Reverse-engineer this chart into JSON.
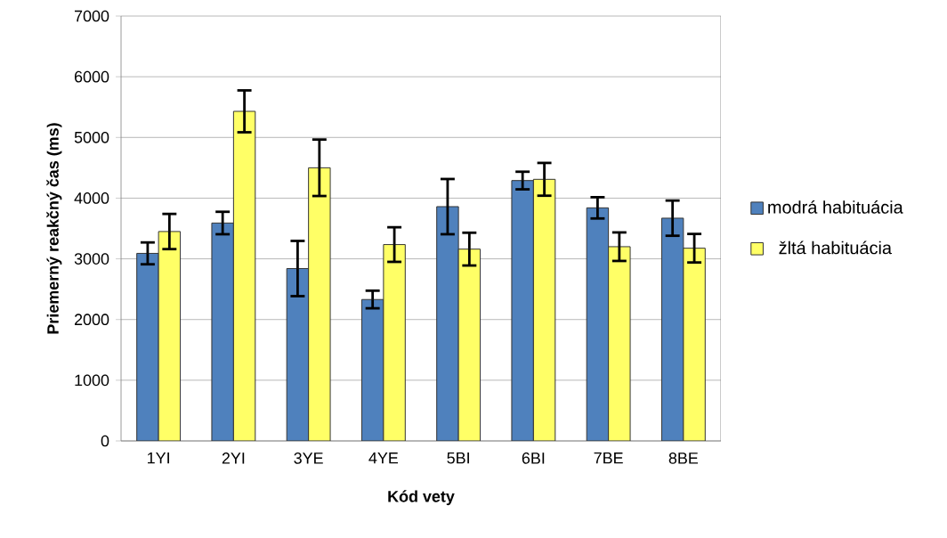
{
  "chart_data": {
    "type": "bar",
    "xlabel": "Kód vety",
    "ylabel": "Priemerný reakčný čas (ms)",
    "categories": [
      "1YI",
      "2YI",
      "3YE",
      "4YE",
      "5BI",
      "6BI",
      "7BE",
      "8BE"
    ],
    "series": [
      {
        "name": "modrá habituácia",
        "color": "#4f81bd",
        "values": [
          3090,
          3590,
          2840,
          2330,
          3860,
          4290,
          3840,
          3670
        ],
        "errors": [
          180,
          185,
          455,
          145,
          455,
          145,
          175,
          290
        ]
      },
      {
        "name": "žltá habituácia",
        "color": "#ffff66",
        "values": [
          3450,
          5430,
          4500,
          3235,
          3160,
          4310,
          3200,
          3175
        ],
        "errors": [
          290,
          345,
          465,
          285,
          270,
          270,
          235,
          235
        ]
      }
    ],
    "ylim": [
      0,
      7000
    ],
    "yticks": [
      0,
      1000,
      2000,
      3000,
      4000,
      5000,
      6000,
      7000
    ],
    "grid": "y",
    "legend": "right"
  }
}
